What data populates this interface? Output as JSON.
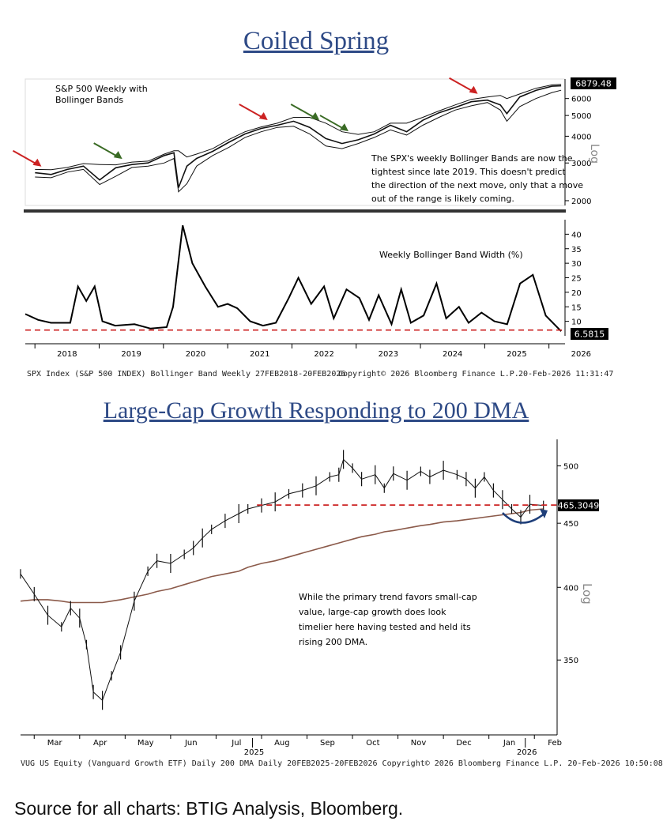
{
  "chart_data": [
    {
      "type": "line",
      "title": "Coiled Spring",
      "subtitle": "S&P 500 Weekly with Bollinger Bands",
      "scale": "Log",
      "yticks": [
        2000,
        3000,
        4000,
        5000,
        6000
      ],
      "last_value": "6879.48",
      "annotation": "The SPX's weekly Bollinger Bands are now the tightest since late 2019. This doesn't predict the direction of the next move, only that a move out of the range is likely coming.",
      "x": [
        2018.0,
        2018.25,
        2018.5,
        2018.75,
        2019.0,
        2019.25,
        2019.5,
        2019.75,
        2020.0,
        2020.15,
        2020.22,
        2020.35,
        2020.5,
        2020.75,
        2021.0,
        2021.25,
        2021.5,
        2021.75,
        2022.0,
        2022.25,
        2022.5,
        2022.75,
        2023.0,
        2023.25,
        2023.5,
        2023.75,
        2024.0,
        2024.25,
        2024.5,
        2024.75,
        2025.0,
        2025.2,
        2025.3,
        2025.5,
        2025.75,
        2026.0,
        2026.14
      ],
      "series": [
        {
          "name": "SPX",
          "values": [
            2700,
            2650,
            2800,
            2900,
            2500,
            2850,
            2950,
            3000,
            3250,
            3350,
            2300,
            2900,
            3150,
            3400,
            3750,
            4100,
            4350,
            4500,
            4700,
            4400,
            3900,
            3700,
            3850,
            4100,
            4500,
            4200,
            4750,
            5150,
            5450,
            5800,
            5900,
            5600,
            5100,
            6100,
            6550,
            6850,
            6879
          ]
        },
        {
          "name": "Upper band",
          "values": [
            2800,
            2790,
            2860,
            2980,
            2950,
            2940,
            3030,
            3060,
            3300,
            3420,
            3420,
            3200,
            3300,
            3500,
            3860,
            4200,
            4420,
            4600,
            4900,
            4900,
            4600,
            4200,
            4080,
            4200,
            4600,
            4600,
            4900,
            5250,
            5600,
            5950,
            6100,
            6200,
            6000,
            6300,
            6700,
            6950,
            6990
          ]
        },
        {
          "name": "Lower band",
          "values": [
            2580,
            2560,
            2720,
            2800,
            2380,
            2600,
            2860,
            2900,
            3000,
            3150,
            2200,
            2400,
            2900,
            3250,
            3550,
            3950,
            4200,
            4400,
            4450,
            4100,
            3600,
            3500,
            3700,
            3950,
            4280,
            4050,
            4500,
            4900,
            5300,
            5550,
            5750,
            5300,
            4700,
            5500,
            6000,
            6400,
            6560
          ]
        }
      ],
      "arrows": [
        {
          "color": "red",
          "x": 2018.1
        },
        {
          "color": "green",
          "x": 2019.35
        },
        {
          "color": "red",
          "x": 2021.6
        },
        {
          "color": "green",
          "x": 2022.4
        },
        {
          "color": "green",
          "x": 2022.85
        },
        {
          "color": "red",
          "x": 2024.85
        }
      ]
    },
    {
      "type": "line",
      "title": "Weekly Bollinger Band Width (%)",
      "yticks": [
        10,
        15,
        20,
        25,
        30,
        35,
        40
      ],
      "threshold": 7,
      "last_value": "6.5815",
      "x": [
        2017.8,
        2018.0,
        2018.2,
        2018.5,
        2018.62,
        2018.75,
        2018.88,
        2019.0,
        2019.2,
        2019.5,
        2019.75,
        2020.0,
        2020.1,
        2020.25,
        2020.4,
        2020.6,
        2020.8,
        2020.95,
        2021.1,
        2021.3,
        2021.5,
        2021.7,
        2021.9,
        2022.05,
        2022.25,
        2022.45,
        2022.6,
        2022.8,
        2023.0,
        2023.15,
        2023.3,
        2023.5,
        2023.65,
        2023.8,
        2024.0,
        2024.2,
        2024.35,
        2024.55,
        2024.7,
        2024.9,
        2025.1,
        2025.3,
        2025.5,
        2025.7,
        2025.9,
        2026.14
      ],
      "values": [
        12.5,
        10.5,
        9.5,
        9.5,
        22,
        17,
        22,
        10,
        8.5,
        9,
        7.5,
        8,
        15,
        43,
        30,
        22,
        15,
        16,
        14.5,
        10,
        8.5,
        9.5,
        18,
        25,
        16,
        22,
        11,
        21,
        18,
        10.5,
        19,
        9,
        21,
        9.5,
        12,
        23,
        11,
        15,
        9.5,
        13,
        10,
        9,
        23,
        26,
        12,
        6.58
      ],
      "xticks": [
        "2018",
        "2019",
        "2020",
        "2021",
        "2022",
        "2023",
        "2024",
        "2025",
        "2026"
      ]
    },
    {
      "type": "line",
      "title": "Large-Cap Growth Responding to 200 DMA",
      "scale": "Log",
      "yticks": [
        350,
        400,
        450,
        500
      ],
      "threshold": 465.3,
      "last_value": "465.3049",
      "annotation": "While the primary trend favors small-cap value, large-cap growth does look timelier here having tested and held its rising 200 DMA.",
      "xticks": [
        "Mar",
        "Apr",
        "May",
        "Jun",
        "Jul",
        "Aug",
        "Sep",
        "Oct",
        "Nov",
        "Dec",
        "Jan",
        "Feb"
      ],
      "year_labels": [
        "2025",
        "2026"
      ],
      "x": [
        0,
        0.3,
        0.6,
        0.9,
        1.1,
        1.3,
        1.45,
        1.6,
        1.8,
        2.0,
        2.2,
        2.5,
        2.8,
        3.0,
        3.3,
        3.6,
        3.8,
        4.0,
        4.2,
        4.5,
        4.8,
        5.0,
        5.3,
        5.6,
        5.9,
        6.2,
        6.5,
        6.8,
        7.0,
        7.1,
        7.3,
        7.5,
        7.8,
        8.0,
        8.2,
        8.5,
        8.8,
        9.0,
        9.3,
        9.6,
        9.8,
        10.0,
        10.2,
        10.4,
        10.6,
        10.8,
        11.0,
        11.2,
        11.5
      ],
      "series": [
        {
          "name": "VUG",
          "values": [
            410,
            395,
            380,
            372,
            385,
            378,
            360,
            330,
            325,
            340,
            355,
            390,
            412,
            420,
            418,
            425,
            430,
            438,
            445,
            452,
            458,
            462,
            465,
            468,
            475,
            478,
            482,
            490,
            492,
            506,
            498,
            488,
            492,
            480,
            493,
            487,
            495,
            490,
            496,
            492,
            488,
            480,
            490,
            478,
            470,
            462,
            455,
            466,
            465
          ]
        },
        {
          "name": "200 DMA",
          "values": [
            390,
            391,
            391,
            390,
            389,
            389,
            389,
            389,
            389,
            390,
            391,
            393,
            395,
            397,
            399,
            402,
            404,
            406,
            408,
            410,
            412,
            415,
            418,
            420,
            423,
            426,
            429,
            432,
            434,
            435,
            437,
            439,
            441,
            443,
            444,
            446,
            448,
            449,
            451,
            452,
            453,
            454,
            455,
            456,
            457,
            458,
            459,
            461,
            462
          ]
        }
      ]
    }
  ],
  "footer1": {
    "left": "SPX Index (S&P 500 INDEX) Bollinger Band Weekly 27FEB2018-20FEB2026",
    "mid": "Copyright© 2026 Bloomberg Finance L.P.",
    "right": "20-Feb-2026 11:31:47"
  },
  "footer2": "VUG US Equity (Vanguard Growth ETF) Daily 200 DMA Daily 20FEB2025-20FEB2026 Copyright© 2026 Bloomberg Finance L.P. 20-Feb-2026 10:50:08",
  "source": "Source for all charts: BTIG Analysis, Bloomberg.",
  "colors": {
    "title": "#2e4a86",
    "red": "#cc2222",
    "green": "#3a6b25",
    "dma": "#8b5a4a",
    "curve": "#1f3f7a"
  }
}
